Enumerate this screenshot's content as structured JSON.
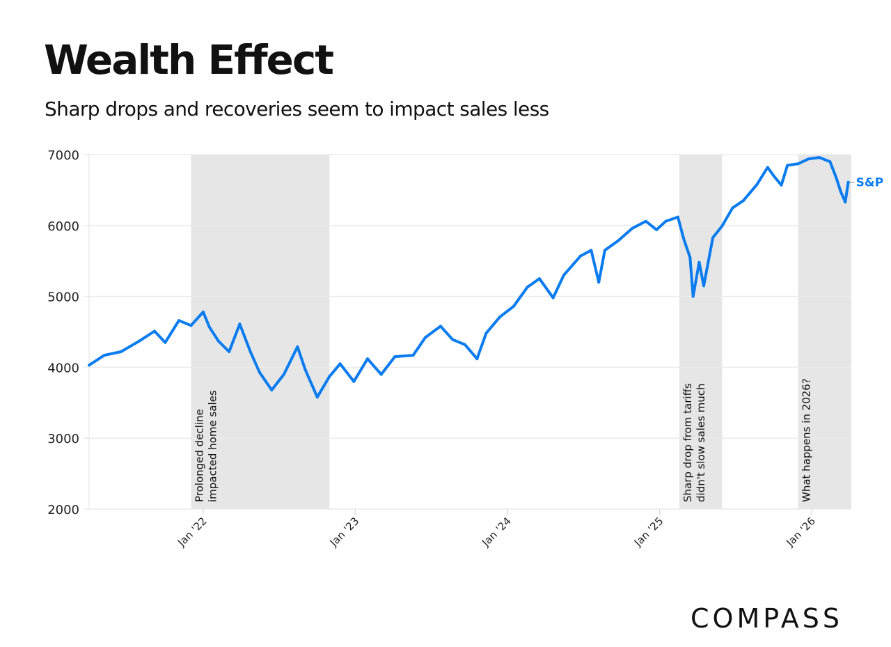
{
  "header": {
    "title": "Wealth Effect",
    "subtitle": "Sharp drops and recoveries seem to impact sales less"
  },
  "brand": {
    "logo_text": "COMPASS"
  },
  "colors": {
    "line": "#0a7cf0",
    "band": "#e6e6e6",
    "grid": "#ebebeb",
    "text": "#111111"
  },
  "chart_data": {
    "type": "line",
    "title": "Wealth Effect",
    "subtitle": "Sharp drops and recoveries seem to impact sales less",
    "xlabel": "",
    "ylabel": "",
    "xlim": [
      2021.25,
      2026.26
    ],
    "ylim": [
      2000,
      7000
    ],
    "grid": true,
    "y_ticks": [
      2000,
      3000,
      4000,
      5000,
      6000,
      7000
    ],
    "y_tick_labels": [
      "2000",
      "3000",
      "4000",
      "5000",
      "6000",
      "7000"
    ],
    "x_ticks": [
      2022.0,
      2023.0,
      2024.0,
      2025.0,
      2026.0
    ],
    "x_tick_labels": [
      "Jan '22",
      "Jan '23",
      "Jan '24",
      "Jan '25",
      "Jan '26"
    ],
    "legend": "end-of-line label",
    "series": [
      {
        "name": "S&P",
        "x": [
          2021.25,
          2021.35,
          2021.46,
          2021.58,
          2021.68,
          2021.75,
          2021.84,
          2021.92,
          2022.0,
          2022.04,
          2022.1,
          2022.17,
          2022.24,
          2022.31,
          2022.37,
          2022.45,
          2022.53,
          2022.62,
          2022.67,
          2022.75,
          2022.83,
          2022.9,
          2022.99,
          2023.08,
          2023.17,
          2023.26,
          2023.38,
          2023.46,
          2023.56,
          2023.64,
          2023.72,
          2023.8,
          2023.86,
          2023.95,
          2024.04,
          2024.13,
          2024.21,
          2024.3,
          2024.37,
          2024.48,
          2024.55,
          2024.6,
          2024.64,
          2024.73,
          2024.82,
          2024.91,
          2024.98,
          2025.04,
          2025.12,
          2025.16,
          2025.2,
          2025.22,
          2025.26,
          2025.29,
          2025.35,
          2025.41,
          2025.48,
          2025.55,
          2025.64,
          2025.71,
          2025.75,
          2025.8,
          2025.84,
          2025.91,
          2025.98,
          2026.05,
          2026.12,
          2026.16,
          2026.19,
          2026.22,
          2026.24
        ],
        "values": [
          4030,
          4170,
          4220,
          4370,
          4510,
          4350,
          4660,
          4590,
          4780,
          4570,
          4370,
          4220,
          4610,
          4220,
          3930,
          3680,
          3900,
          4290,
          3970,
          3580,
          3870,
          4050,
          3800,
          4120,
          3900,
          4150,
          4170,
          4420,
          4580,
          4390,
          4320,
          4120,
          4480,
          4710,
          4860,
          5130,
          5250,
          4980,
          5300,
          5570,
          5650,
          5200,
          5650,
          5790,
          5960,
          6060,
          5940,
          6060,
          6120,
          5800,
          5550,
          5000,
          5480,
          5150,
          5830,
          5990,
          6250,
          6350,
          6580,
          6820,
          6700,
          6570,
          6850,
          6870,
          6940,
          6960,
          6900,
          6680,
          6480,
          6330,
          6610
        ]
      }
    ],
    "bands": [
      {
        "start": 2021.92,
        "end": 2022.83,
        "label": "Prolonged decline\nimpacted home sales"
      },
      {
        "start": 2025.13,
        "end": 2025.41,
        "label": "Sharp drop from tariffs\ndidn't slow sales much"
      },
      {
        "start": 2025.91,
        "end": 2026.26,
        "label": "What happens in 2026?"
      }
    ]
  }
}
